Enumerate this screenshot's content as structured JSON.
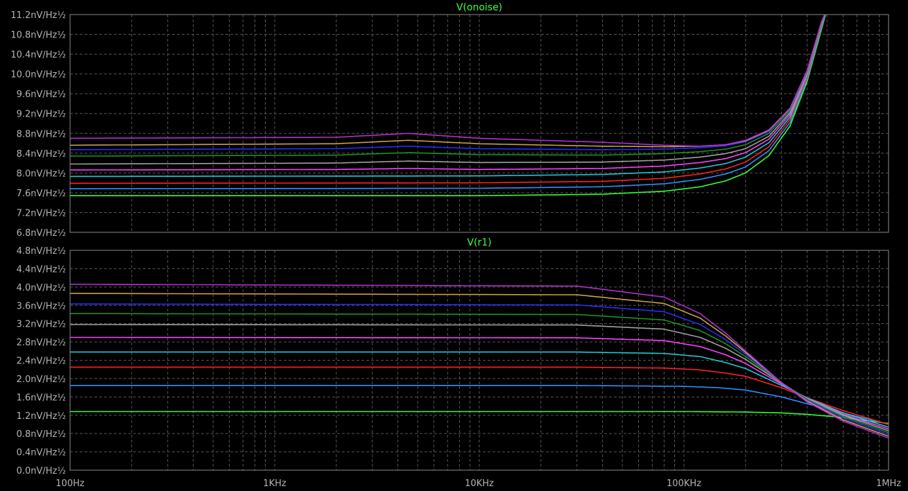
{
  "chart_data": [
    {
      "type": "line",
      "title": "V(onoise)",
      "xscale": "log",
      "xlim": [
        100,
        1000000
      ],
      "ylim": [
        6.8,
        11.2
      ],
      "grid": true,
      "y_ticks": [
        6.8,
        7.2,
        7.6,
        8.0,
        8.4,
        8.8,
        9.2,
        9.6,
        10.0,
        10.4,
        10.8,
        11.2
      ],
      "y_tick_labels": [
        "6.8nV/Hz½",
        "7.2nV/Hz½",
        "7.6nV/Hz½",
        "8.0nV/Hz½",
        "8.4nV/Hz½",
        "8.8nV/Hz½",
        "9.2nV/Hz½",
        "9.6nV/Hz½",
        "10.0nV/Hz½",
        "10.4nV/Hz½",
        "10.8nV/Hz½",
        "11.2nV/Hz½"
      ],
      "series": [
        {
          "color": "#32ff32",
          "x": [
            100,
            10000,
            40000,
            80000,
            120000,
            160000,
            200000,
            260000,
            330000,
            400000,
            470000,
            500000
          ],
          "values": [
            7.54,
            7.54,
            7.57,
            7.63,
            7.72,
            7.84,
            8.0,
            8.35,
            8.95,
            9.85,
            10.9,
            11.3
          ]
        },
        {
          "color": "#2e8fff",
          "x": [
            100,
            10000,
            40000,
            80000,
            120000,
            160000,
            200000,
            260000,
            330000,
            400000,
            470000,
            500000
          ],
          "values": [
            7.68,
            7.69,
            7.72,
            7.78,
            7.87,
            7.98,
            8.12,
            8.45,
            9.02,
            9.9,
            10.95,
            11.3
          ]
        },
        {
          "color": "#ff2020",
          "x": [
            100,
            10000,
            40000,
            80000,
            120000,
            160000,
            200000,
            260000,
            330000,
            400000,
            470000,
            500000
          ],
          "values": [
            7.79,
            7.8,
            7.83,
            7.89,
            7.98,
            8.08,
            8.22,
            8.53,
            9.08,
            9.94,
            10.98,
            11.3
          ]
        },
        {
          "color": "#21c7d4",
          "x": [
            100,
            10000,
            40000,
            80000,
            120000,
            160000,
            200000,
            260000,
            330000,
            400000,
            470000,
            500000
          ],
          "values": [
            7.93,
            7.94,
            7.97,
            8.02,
            8.1,
            8.19,
            8.32,
            8.61,
            9.13,
            9.98,
            11.0,
            11.3
          ]
        },
        {
          "color": "#ff40ff",
          "x": [
            100,
            2000,
            4500,
            10000,
            40000,
            80000,
            120000,
            160000,
            200000,
            260000,
            330000,
            400000,
            470000,
            500000
          ],
          "values": [
            8.06,
            8.07,
            8.09,
            8.07,
            8.09,
            8.14,
            8.21,
            8.29,
            8.41,
            8.68,
            9.18,
            10.01,
            11.02,
            11.3
          ]
        },
        {
          "color": "#a0a0a0",
          "x": [
            100,
            2000,
            4500,
            10000,
            40000,
            80000,
            120000,
            160000,
            200000,
            260000,
            330000,
            400000,
            470000,
            500000
          ],
          "values": [
            8.18,
            8.2,
            8.24,
            8.21,
            8.22,
            8.26,
            8.32,
            8.39,
            8.49,
            8.74,
            9.22,
            10.03,
            11.03,
            11.3
          ]
        },
        {
          "color": "#1f8f1f",
          "x": [
            100,
            2000,
            4500,
            10000,
            40000,
            80000,
            120000,
            160000,
            200000,
            260000,
            330000,
            400000,
            470000,
            500000
          ],
          "values": [
            8.34,
            8.36,
            8.41,
            8.37,
            8.36,
            8.39,
            8.43,
            8.48,
            8.57,
            8.8,
            9.26,
            10.05,
            11.04,
            11.3
          ]
        },
        {
          "color": "#2b2bff",
          "x": [
            100,
            2000,
            4500,
            10000,
            40000,
            80000,
            120000,
            160000,
            200000,
            260000,
            330000,
            400000,
            470000,
            500000
          ],
          "values": [
            8.47,
            8.49,
            8.54,
            8.49,
            8.47,
            8.48,
            8.51,
            8.55,
            8.63,
            8.84,
            9.29,
            10.06,
            11.05,
            11.3
          ]
        },
        {
          "color": "#c8a040",
          "x": [
            100,
            2000,
            4500,
            10000,
            40000,
            80000,
            120000,
            160000,
            200000,
            260000,
            330000,
            400000,
            470000,
            500000
          ],
          "values": [
            8.56,
            8.59,
            8.66,
            8.59,
            8.54,
            8.53,
            8.54,
            8.57,
            8.65,
            8.86,
            9.3,
            10.07,
            11.05,
            11.3
          ]
        },
        {
          "color": "#b030d0",
          "x": [
            100,
            2000,
            4500,
            10000,
            40000,
            80000,
            120000,
            160000,
            200000,
            260000,
            330000,
            400000,
            470000,
            500000
          ],
          "values": [
            8.7,
            8.72,
            8.8,
            8.7,
            8.62,
            8.56,
            8.54,
            8.57,
            8.66,
            8.87,
            9.31,
            10.07,
            11.05,
            11.3
          ]
        }
      ]
    },
    {
      "type": "line",
      "title": "V(r1)",
      "xscale": "log",
      "xlim": [
        100,
        1000000
      ],
      "ylim": [
        0.0,
        4.8
      ],
      "grid": true,
      "y_ticks": [
        0.0,
        0.4,
        0.8,
        1.2,
        1.6,
        2.0,
        2.4,
        2.8,
        3.2,
        3.6,
        4.0,
        4.4,
        4.8
      ],
      "y_tick_labels": [
        "0.0nV/Hz½",
        "0.4nV/Hz½",
        "0.8nV/Hz½",
        "1.2nV/Hz½",
        "1.6nV/Hz½",
        "2.0nV/Hz½",
        "2.4nV/Hz½",
        "2.8nV/Hz½",
        "3.2nV/Hz½",
        "3.6nV/Hz½",
        "4.0nV/Hz½",
        "4.4nV/Hz½",
        "4.8nV/Hz½"
      ],
      "x_ticks": [
        100,
        1000,
        10000,
        100000,
        1000000
      ],
      "x_tick_labels": [
        "100Hz",
        "1KHz",
        "10KHz",
        "100KHz",
        "1MHz"
      ],
      "series": [
        {
          "color": "#32ff32",
          "x": [
            100,
            30000,
            100000,
            200000,
            300000,
            400000,
            600000,
            1000000
          ],
          "values": [
            1.28,
            1.28,
            1.28,
            1.27,
            1.25,
            1.22,
            1.15,
            1.02
          ]
        },
        {
          "color": "#2e8fff",
          "x": [
            100,
            30000,
            100000,
            150000,
            200000,
            300000,
            400000,
            600000,
            1000000
          ],
          "values": [
            1.85,
            1.85,
            1.83,
            1.8,
            1.75,
            1.6,
            1.45,
            1.25,
            1.0
          ]
        },
        {
          "color": "#ff2020",
          "x": [
            100,
            30000,
            80000,
            120000,
            160000,
            200000,
            300000,
            400000,
            600000,
            1000000
          ],
          "values": [
            2.25,
            2.25,
            2.23,
            2.19,
            2.12,
            2.05,
            1.8,
            1.58,
            1.3,
            1.0
          ]
        },
        {
          "color": "#21c7d4",
          "x": [
            100,
            30000,
            80000,
            120000,
            160000,
            200000,
            300000,
            400000,
            600000,
            1000000
          ],
          "values": [
            2.58,
            2.58,
            2.55,
            2.48,
            2.35,
            2.22,
            1.85,
            1.58,
            1.25,
            0.94
          ]
        },
        {
          "color": "#ff40ff",
          "x": [
            100,
            30000,
            80000,
            120000,
            160000,
            200000,
            300000,
            400000,
            600000,
            1000000
          ],
          "values": [
            2.9,
            2.89,
            2.83,
            2.7,
            2.52,
            2.33,
            1.88,
            1.57,
            1.22,
            0.9
          ]
        },
        {
          "color": "#a0a0a0",
          "x": [
            100,
            30000,
            80000,
            120000,
            160000,
            200000,
            300000,
            400000,
            600000,
            1000000
          ],
          "values": [
            3.18,
            3.17,
            3.08,
            2.9,
            2.66,
            2.42,
            1.9,
            1.56,
            1.2,
            0.86
          ]
        },
        {
          "color": "#1f8f1f",
          "x": [
            100,
            30000,
            80000,
            120000,
            160000,
            200000,
            300000,
            400000,
            600000,
            1000000
          ],
          "values": [
            3.42,
            3.4,
            3.28,
            3.05,
            2.76,
            2.48,
            1.91,
            1.55,
            1.17,
            0.82
          ]
        },
        {
          "color": "#2b2bff",
          "x": [
            100,
            30000,
            80000,
            120000,
            160000,
            200000,
            300000,
            400000,
            600000,
            1000000
          ],
          "values": [
            3.63,
            3.61,
            3.46,
            3.18,
            2.85,
            2.53,
            1.91,
            1.53,
            1.14,
            0.78
          ]
        },
        {
          "color": "#c8a040",
          "x": [
            100,
            30000,
            80000,
            120000,
            160000,
            200000,
            300000,
            400000,
            600000,
            1000000
          ],
          "values": [
            3.86,
            3.83,
            3.64,
            3.32,
            2.93,
            2.57,
            1.91,
            1.51,
            1.1,
            0.74
          ]
        },
        {
          "color": "#b030d0",
          "x": [
            100,
            30000,
            80000,
            120000,
            160000,
            200000,
            300000,
            400000,
            600000,
            1000000
          ],
          "values": [
            4.06,
            4.02,
            3.78,
            3.42,
            2.99,
            2.6,
            1.91,
            1.49,
            1.07,
            0.7
          ]
        }
      ]
    }
  ]
}
